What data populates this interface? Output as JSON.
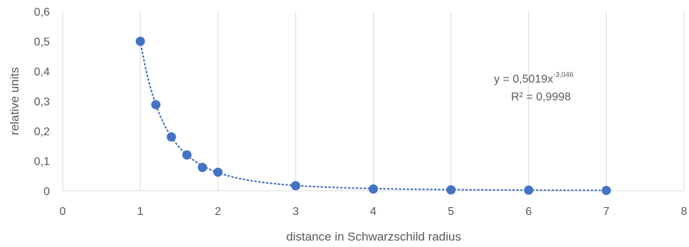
{
  "chart_data": {
    "type": "scatter",
    "xlabel": "distance in Schwarzschild radius",
    "ylabel": "relative units",
    "xlim": [
      0,
      8
    ],
    "ylim": [
      0,
      0.6
    ],
    "x_ticks": [
      0,
      1,
      2,
      3,
      4,
      5,
      6,
      7,
      8
    ],
    "x_tick_labels": [
      "0",
      "1",
      "2",
      "3",
      "4",
      "5",
      "6",
      "7",
      "8"
    ],
    "y_ticks": [
      0,
      0.1,
      0.2,
      0.3,
      0.4,
      0.5,
      0.6
    ],
    "y_tick_labels": [
      "0",
      "0,1",
      "0,2",
      "0,3",
      "0,4",
      "0,5",
      "0,6"
    ],
    "grid": "vertical",
    "series": [
      {
        "x": [
          1,
          1.2,
          1.4,
          1.6,
          1.8,
          2,
          3,
          4,
          5,
          6,
          7
        ],
        "y": [
          0.5,
          0.288,
          0.18,
          0.12,
          0.078,
          0.062,
          0.017,
          0.006,
          0.003,
          0.002,
          0.001
        ],
        "color": "#4472C4",
        "marker": "circle"
      }
    ],
    "trendline": {
      "type": "power",
      "a": 0.5019,
      "b": -3.046,
      "color": "#4472C4",
      "style": "dotted",
      "equation_main": "y = 0,5019x",
      "equation_exponent": "-3,046",
      "r_squared": "R² = 0,9998"
    }
  }
}
